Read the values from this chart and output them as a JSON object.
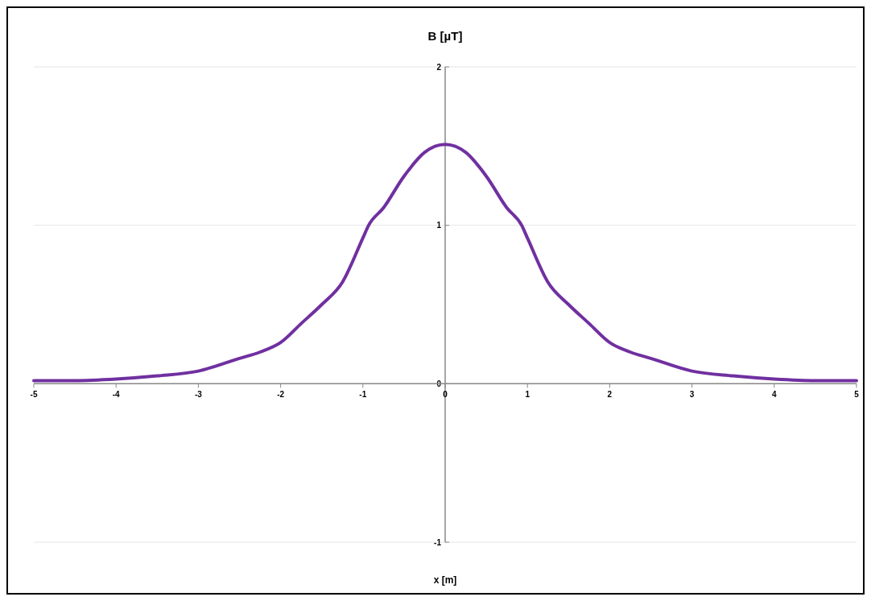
{
  "chart_data": {
    "type": "line",
    "ylabel": "B [µT]",
    "xlabel": "x [m]",
    "x": [
      -5,
      -4.5,
      -4,
      -3.5,
      -3,
      -2.5,
      -2.25,
      -2,
      -1.75,
      -1.5,
      -1.25,
      -1,
      -0.93,
      -0.75,
      -0.5,
      -0.25,
      0,
      0.25,
      0.5,
      0.75,
      0.93,
      1,
      1.25,
      1.5,
      1.75,
      2,
      2.25,
      2.5,
      3,
      3.5,
      4,
      4.5,
      5
    ],
    "series": [
      {
        "color": "#7030a0",
        "values": [
          0.02,
          0.02,
          0.03,
          0.05,
          0.08,
          0.16,
          0.2,
          0.26,
          0.38,
          0.5,
          0.64,
          0.92,
          1,
          1.11,
          1.31,
          1.46,
          1.51,
          1.46,
          1.31,
          1.11,
          1,
          0.92,
          0.64,
          0.5,
          0.38,
          0.26,
          0.2,
          0.16,
          0.08,
          0.05,
          0.03,
          0.02,
          0.02
        ]
      }
    ],
    "xlim": [
      -5,
      5
    ],
    "xticks": [
      -5,
      -4,
      -3,
      -2,
      -1,
      0,
      1,
      2,
      3,
      4,
      5
    ],
    "ylim": [
      -1,
      2
    ],
    "yticks": [
      -1,
      0,
      1,
      2
    ],
    "grid": "y",
    "marker": "none",
    "line_style": "solid"
  }
}
